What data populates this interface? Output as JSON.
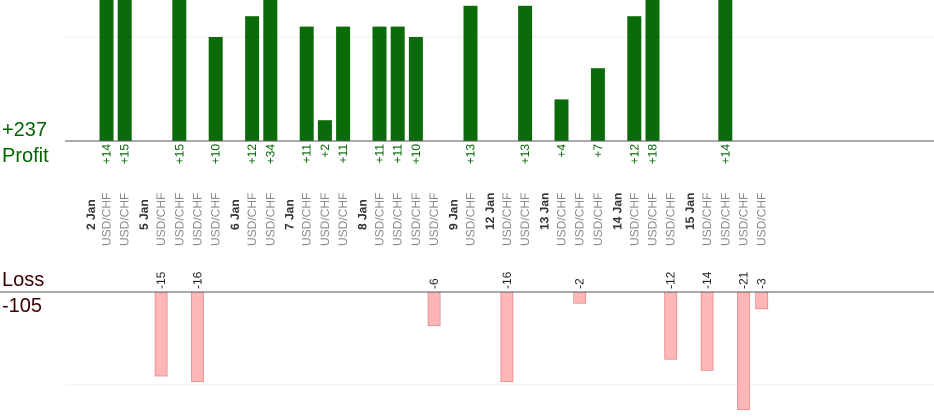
{
  "summary": {
    "profit_total": "+237",
    "profit_label": "Profit",
    "loss_label": "Loss",
    "loss_total": "-105"
  },
  "colors": {
    "profit_bar": "#0b6b0b",
    "profit_text": "#006400",
    "loss_bar": "#ffb6b6",
    "loss_text": "#3a0000",
    "instrument_text": "#8a8a8a",
    "date_text": "#333333",
    "axis": "#555555",
    "grid": "#eeeeee"
  },
  "chart_data": {
    "type": "bar",
    "title": "",
    "grid": true,
    "days": [
      {
        "date": "2 Jan",
        "trades": [
          {
            "instrument": "USD/CHF",
            "profit": 14
          },
          {
            "instrument": "USD/CHF",
            "profit": 15
          }
        ]
      },
      {
        "date": "5 Jan",
        "trades": [
          {
            "instrument": "USD/CHF",
            "loss": -15
          },
          {
            "instrument": "USD/CHF",
            "profit": 15
          },
          {
            "instrument": "USD/CHF",
            "loss": -16
          },
          {
            "instrument": "USD/CHF",
            "profit": 10
          }
        ]
      },
      {
        "date": "6 Jan",
        "trades": [
          {
            "instrument": "USD/CHF",
            "profit": 12
          },
          {
            "instrument": "USD/CHF",
            "profit": 34
          }
        ]
      },
      {
        "date": "7 Jan",
        "trades": [
          {
            "instrument": "USD/CHF",
            "profit": 11
          },
          {
            "instrument": "USD/CHF",
            "profit": 2
          },
          {
            "instrument": "USD/CHF",
            "profit": 11
          }
        ]
      },
      {
        "date": "8 Jan",
        "trades": [
          {
            "instrument": "USD/CHF",
            "profit": 11
          },
          {
            "instrument": "USD/CHF",
            "profit": 11
          },
          {
            "instrument": "USD/CHF",
            "profit": 10
          },
          {
            "instrument": "USD/CHF",
            "loss": -6
          }
        ]
      },
      {
        "date": "9 Jan",
        "trades": [
          {
            "instrument": "USD/CHF",
            "profit": 13
          }
        ]
      },
      {
        "date": "12 Jan",
        "trades": [
          {
            "instrument": "USD/CHF",
            "loss": -16
          },
          {
            "instrument": "USD/CHF",
            "profit": 13
          }
        ]
      },
      {
        "date": "13 Jan",
        "trades": [
          {
            "instrument": "USD/CHF",
            "profit": 4
          },
          {
            "instrument": "USD/CHF",
            "loss": -2
          },
          {
            "instrument": "USD/CHF",
            "profit": 7
          }
        ]
      },
      {
        "date": "14 Jan",
        "trades": [
          {
            "instrument": "USD/CHF",
            "profit": 12
          },
          {
            "instrument": "USD/CHF",
            "profit": 18
          },
          {
            "instrument": "USD/CHF",
            "loss": -12
          }
        ]
      },
      {
        "date": "15 Jan",
        "trades": [
          {
            "instrument": "USD/CHF",
            "loss": -14
          },
          {
            "instrument": "USD/CHF",
            "profit": 14
          },
          {
            "instrument": "USD/CHF",
            "loss": -21
          },
          {
            "instrument": "USD/CHF",
            "loss": -3
          }
        ]
      }
    ]
  }
}
